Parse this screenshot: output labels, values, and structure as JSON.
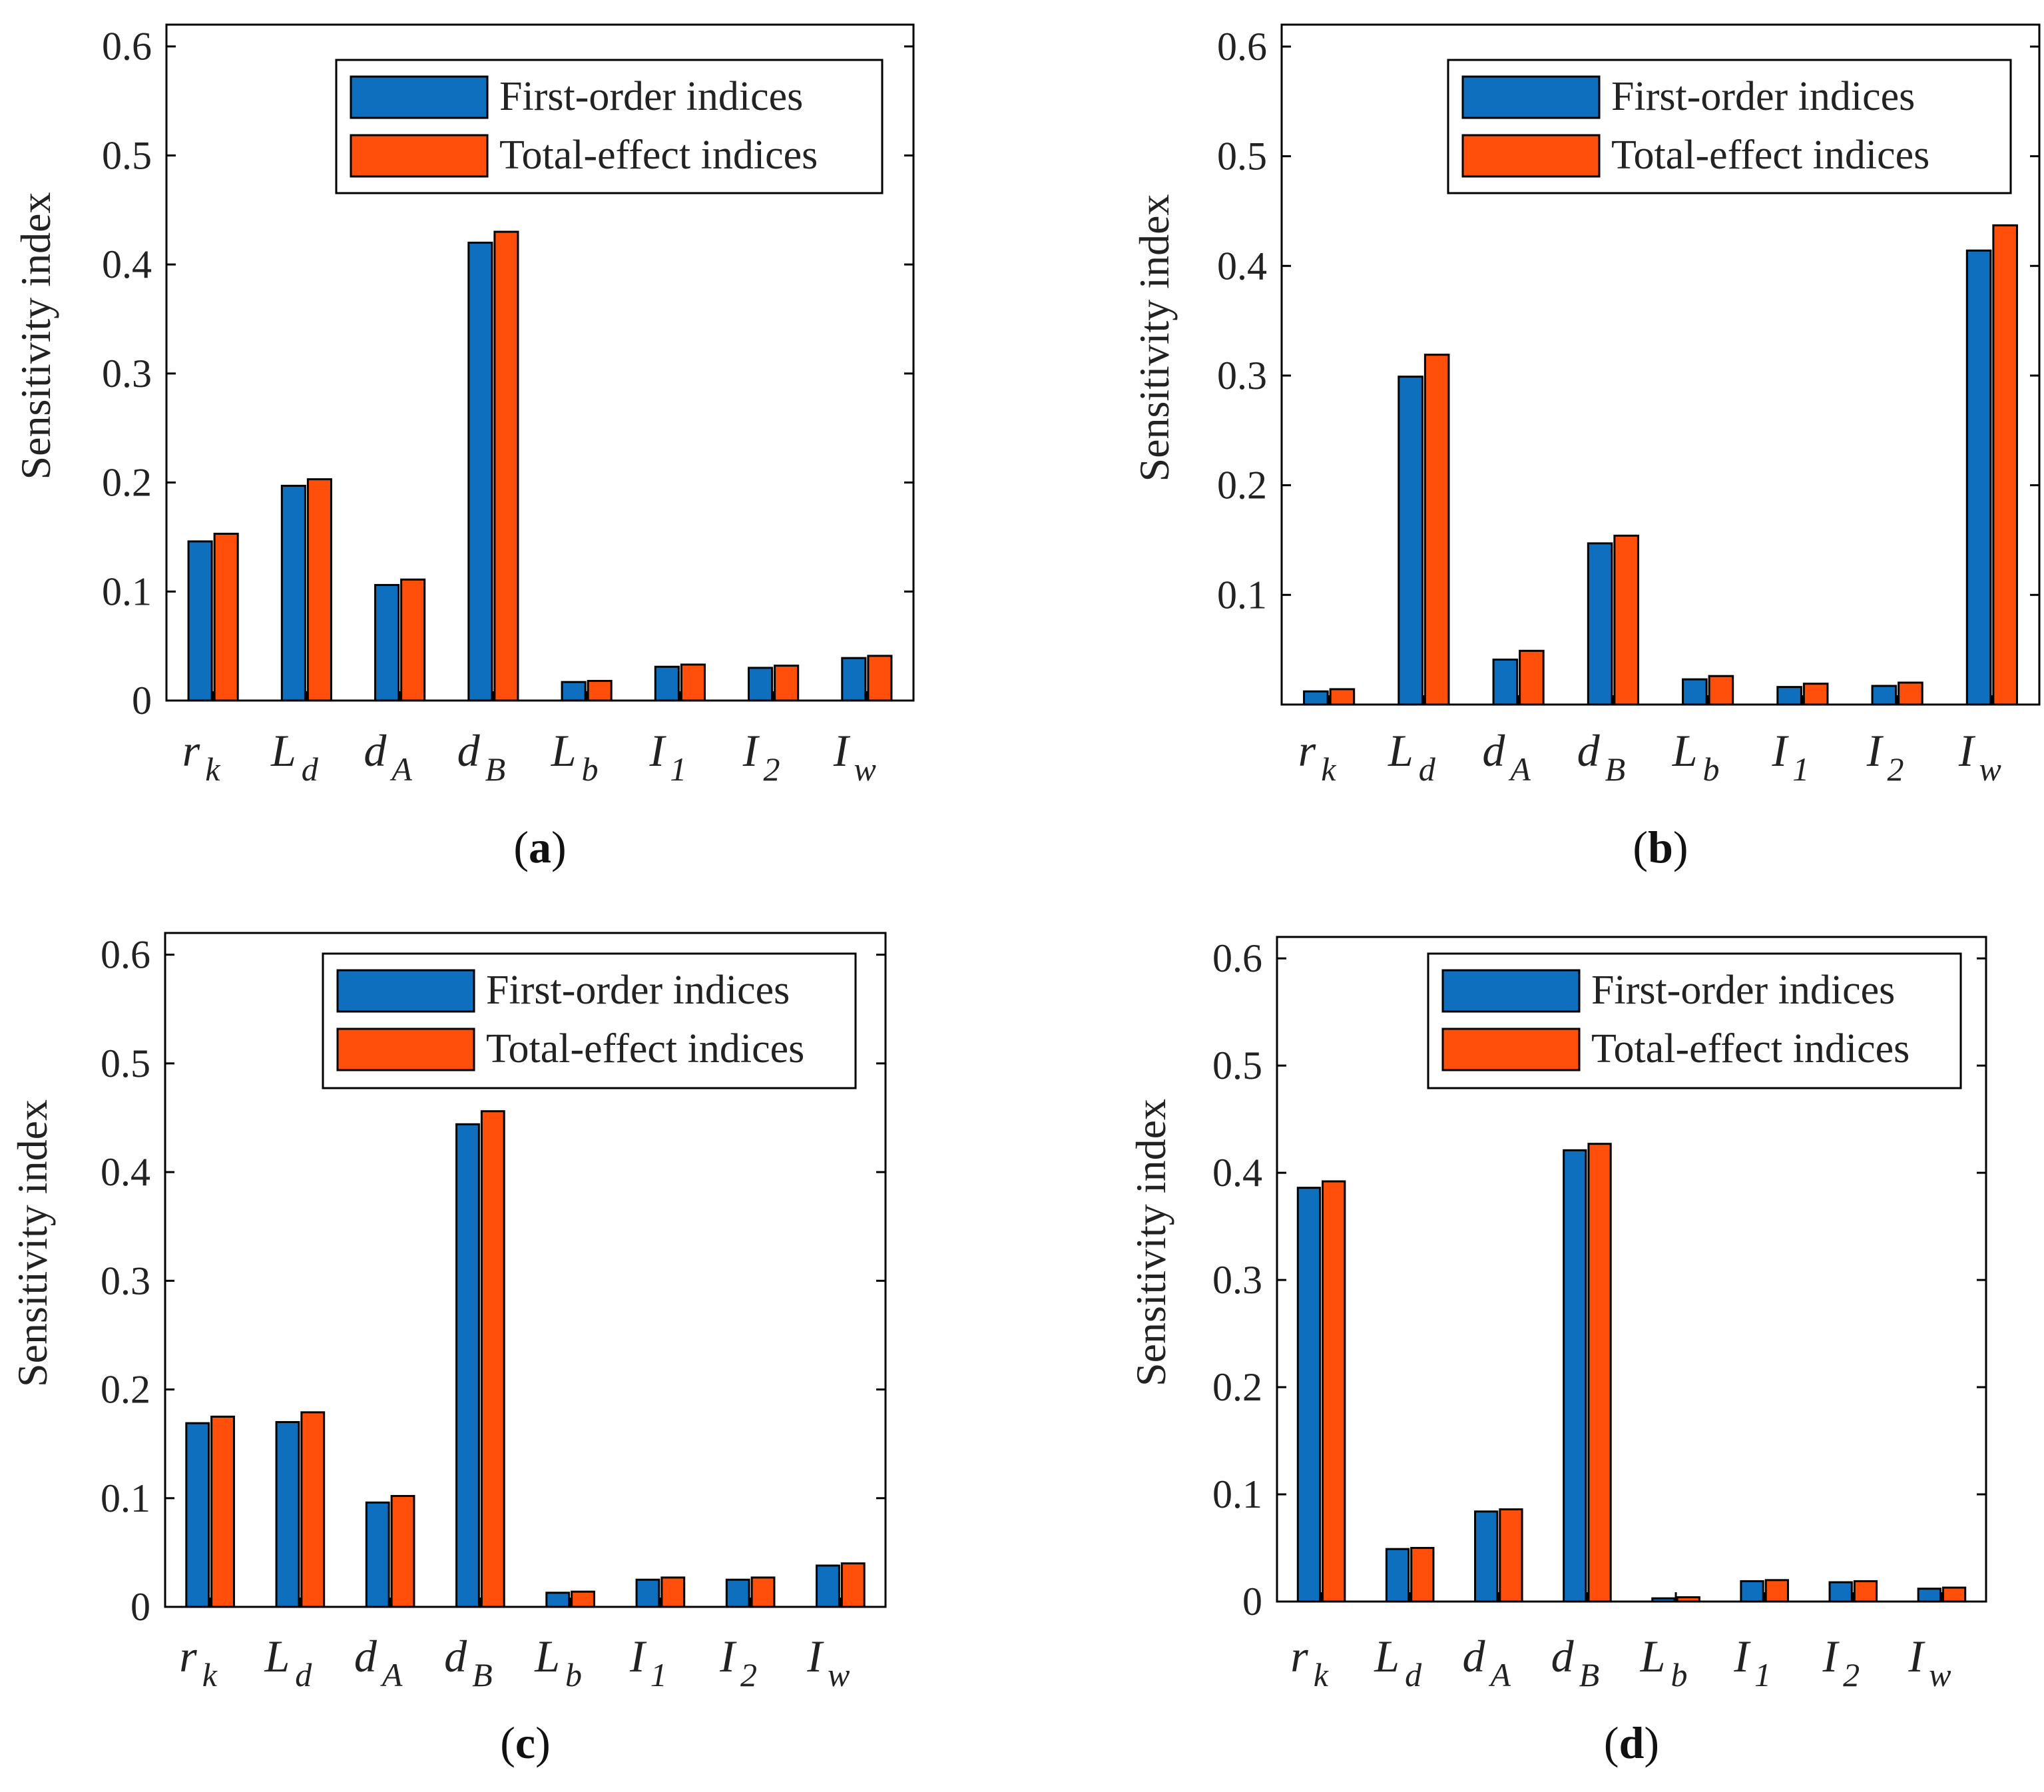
{
  "colors": {
    "first": "#0f6fbf",
    "total": "#ff4f0a"
  },
  "chart_data": [
    {
      "panel": "(a)",
      "panel_letter": "a",
      "type": "bar",
      "ylabel": "Sensitivity index",
      "ylim": [
        0,
        0.6
      ],
      "yticks": [
        "0",
        "0.1",
        "0.2",
        "0.3",
        "0.4",
        "0.5",
        "0.6"
      ],
      "categories": [
        {
          "main": "r",
          "sub": "k"
        },
        {
          "main": "L",
          "sub": "d"
        },
        {
          "main": "d",
          "sub": "A"
        },
        {
          "main": "d",
          "sub": "B"
        },
        {
          "main": "L",
          "sub": "b"
        },
        {
          "main": "I",
          "sub": "1"
        },
        {
          "main": "I",
          "sub": "2"
        },
        {
          "main": "I",
          "sub": "w"
        }
      ],
      "legend": [
        "First-order indices",
        "Total-effect indices"
      ],
      "series": [
        {
          "name": "First-order indices",
          "values": [
            0.146,
            0.197,
            0.106,
            0.42,
            0.017,
            0.031,
            0.03,
            0.039
          ]
        },
        {
          "name": "Total-effect indices",
          "values": [
            0.153,
            0.203,
            0.111,
            0.43,
            0.018,
            0.033,
            0.032,
            0.041
          ]
        }
      ]
    },
    {
      "panel": "(b)",
      "panel_letter": "b",
      "type": "bar",
      "ylabel": "Sensitivity index",
      "ylim": [
        0,
        0.6
      ],
      "yticks": [
        "",
        "0.1",
        "0.2",
        "0.3",
        "0.4",
        "0.5",
        "0.6"
      ],
      "categories": [
        {
          "main": "r",
          "sub": "k"
        },
        {
          "main": "L",
          "sub": "d"
        },
        {
          "main": "d",
          "sub": "A"
        },
        {
          "main": "d",
          "sub": "B"
        },
        {
          "main": "L",
          "sub": "b"
        },
        {
          "main": "I",
          "sub": "1"
        },
        {
          "main": "I",
          "sub": "2"
        },
        {
          "main": "I",
          "sub": "w"
        }
      ],
      "legend": [
        "First-order indices",
        "Total-effect indices"
      ],
      "series": [
        {
          "name": "First-order indices",
          "values": [
            0.012,
            0.299,
            0.041,
            0.147,
            0.023,
            0.016,
            0.017,
            0.414
          ]
        },
        {
          "name": "Total-effect indices",
          "values": [
            0.014,
            0.319,
            0.049,
            0.154,
            0.026,
            0.019,
            0.02,
            0.437
          ]
        }
      ]
    },
    {
      "panel": "(c)",
      "panel_letter": "c",
      "type": "bar",
      "ylabel": "Sensitivity index",
      "ylim": [
        0,
        0.6
      ],
      "yticks": [
        "0",
        "0.1",
        "0.2",
        "0.3",
        "0.4",
        "0.5",
        "0.6"
      ],
      "categories": [
        {
          "main": "r",
          "sub": "k"
        },
        {
          "main": "L",
          "sub": "d"
        },
        {
          "main": "d",
          "sub": "A"
        },
        {
          "main": "d",
          "sub": "B"
        },
        {
          "main": "L",
          "sub": "b"
        },
        {
          "main": "I",
          "sub": "1"
        },
        {
          "main": "I",
          "sub": "2"
        },
        {
          "main": "I",
          "sub": "w"
        }
      ],
      "legend": [
        "First-order indices",
        "Total-effect indices"
      ],
      "series": [
        {
          "name": "First-order indices",
          "values": [
            0.169,
            0.17,
            0.096,
            0.444,
            0.013,
            0.025,
            0.025,
            0.038
          ]
        },
        {
          "name": "Total-effect indices",
          "values": [
            0.175,
            0.179,
            0.102,
            0.456,
            0.014,
            0.027,
            0.027,
            0.04
          ]
        }
      ]
    },
    {
      "panel": "(d)",
      "panel_letter": "d",
      "type": "bar",
      "ylabel": "Sensitivity index",
      "ylim": [
        0,
        0.6
      ],
      "yticks": [
        "0",
        "0.1",
        "0.2",
        "0.3",
        "0.4",
        "0.5",
        "0.6"
      ],
      "categories": [
        {
          "main": "r",
          "sub": "k"
        },
        {
          "main": "L",
          "sub": "d"
        },
        {
          "main": "d",
          "sub": "A"
        },
        {
          "main": "d",
          "sub": "B"
        },
        {
          "main": "L",
          "sub": "b"
        },
        {
          "main": "I",
          "sub": "1"
        },
        {
          "main": "I",
          "sub": "2"
        },
        {
          "main": "I",
          "sub": "w"
        }
      ],
      "legend": [
        "First-order indices",
        "Total-effect indices"
      ],
      "series": [
        {
          "name": "First-order indices",
          "values": [
            0.386,
            0.049,
            0.084,
            0.421,
            0.003,
            0.019,
            0.018,
            0.012
          ]
        },
        {
          "name": "Total-effect indices",
          "values": [
            0.392,
            0.05,
            0.086,
            0.427,
            0.004,
            0.02,
            0.019,
            0.013
          ]
        }
      ]
    }
  ]
}
